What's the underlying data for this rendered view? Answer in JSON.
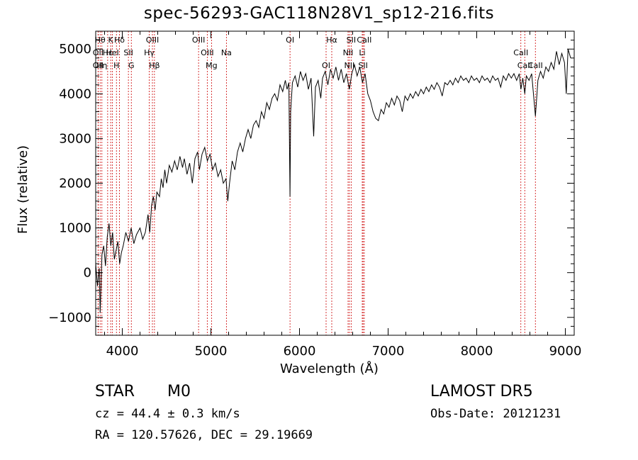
{
  "header": {
    "title": "spec-56293-GAC118N28V1_sp12-216.fits"
  },
  "info": {
    "object_type": "STAR",
    "subclass": "M0",
    "survey": "LAMOST DR5",
    "cz": "cz = 44.4 ± 0.3 km/s",
    "obs_date": "Obs-Date: 20121231",
    "radec": "RA = 120.57626, DEC =  29.19669"
  },
  "colors": {
    "line": "#000000",
    "marker": "#cc0000",
    "background": "#ffffff"
  },
  "chart_data": {
    "type": "line",
    "title": "spec-56293-GAC118N28V1_sp12-216.fits",
    "xlabel": "Wavelength (Å)",
    "ylabel": "Flux (relative)",
    "xlim": [
      3700,
      9100
    ],
    "ylim": [
      -1400,
      5400
    ],
    "xticks": [
      4000,
      5000,
      6000,
      7000,
      8000,
      9000
    ],
    "yticks": [
      -1000,
      0,
      1000,
      2000,
      3000,
      4000,
      5000
    ],
    "grid": false,
    "series": [
      {
        "values": [
          [
            3700,
            200
          ],
          [
            3720,
            -300
          ],
          [
            3740,
            100
          ],
          [
            3750,
            -900
          ],
          [
            3770,
            400
          ],
          [
            3790,
            600
          ],
          [
            3810,
            150
          ],
          [
            3830,
            800
          ],
          [
            3850,
            1100
          ],
          [
            3870,
            600
          ],
          [
            3890,
            900
          ],
          [
            3910,
            300
          ],
          [
            3930,
            500
          ],
          [
            3950,
            700
          ],
          [
            3970,
            200
          ],
          [
            3990,
            450
          ],
          [
            4010,
            600
          ],
          [
            4040,
            900
          ],
          [
            4070,
            700
          ],
          [
            4100,
            1000
          ],
          [
            4130,
            650
          ],
          [
            4160,
            850
          ],
          [
            4200,
            1000
          ],
          [
            4230,
            750
          ],
          [
            4260,
            900
          ],
          [
            4290,
            1300
          ],
          [
            4310,
            900
          ],
          [
            4330,
            1500
          ],
          [
            4350,
            1700
          ],
          [
            4370,
            1400
          ],
          [
            4390,
            1800
          ],
          [
            4420,
            1700
          ],
          [
            4440,
            2100
          ],
          [
            4460,
            1900
          ],
          [
            4480,
            2300
          ],
          [
            4500,
            2000
          ],
          [
            4530,
            2400
          ],
          [
            4560,
            2250
          ],
          [
            4590,
            2500
          ],
          [
            4620,
            2300
          ],
          [
            4650,
            2600
          ],
          [
            4680,
            2350
          ],
          [
            4700,
            2550
          ],
          [
            4730,
            2200
          ],
          [
            4760,
            2450
          ],
          [
            4790,
            2000
          ],
          [
            4820,
            2550
          ],
          [
            4850,
            2700
          ],
          [
            4870,
            2300
          ],
          [
            4900,
            2650
          ],
          [
            4930,
            2800
          ],
          [
            4960,
            2500
          ],
          [
            4990,
            2650
          ],
          [
            5020,
            2300
          ],
          [
            5050,
            2450
          ],
          [
            5080,
            2150
          ],
          [
            5110,
            2300
          ],
          [
            5140,
            2000
          ],
          [
            5170,
            2100
          ],
          [
            5190,
            1600
          ],
          [
            5210,
            2000
          ],
          [
            5240,
            2500
          ],
          [
            5270,
            2300
          ],
          [
            5300,
            2700
          ],
          [
            5330,
            2900
          ],
          [
            5360,
            2700
          ],
          [
            5390,
            3000
          ],
          [
            5420,
            3200
          ],
          [
            5450,
            3000
          ],
          [
            5480,
            3300
          ],
          [
            5510,
            3400
          ],
          [
            5540,
            3250
          ],
          [
            5570,
            3600
          ],
          [
            5600,
            3450
          ],
          [
            5630,
            3800
          ],
          [
            5660,
            3650
          ],
          [
            5690,
            3900
          ],
          [
            5720,
            4000
          ],
          [
            5750,
            3850
          ],
          [
            5780,
            4200
          ],
          [
            5810,
            4050
          ],
          [
            5840,
            4300
          ],
          [
            5860,
            4100
          ],
          [
            5880,
            4250
          ],
          [
            5893,
            1700
          ],
          [
            5900,
            3600
          ],
          [
            5920,
            4250
          ],
          [
            5950,
            4400
          ],
          [
            5980,
            4150
          ],
          [
            6010,
            4500
          ],
          [
            6040,
            4300
          ],
          [
            6070,
            4450
          ],
          [
            6100,
            4100
          ],
          [
            6130,
            4350
          ],
          [
            6160,
            3050
          ],
          [
            6180,
            4150
          ],
          [
            6210,
            4300
          ],
          [
            6240,
            3900
          ],
          [
            6260,
            4350
          ],
          [
            6290,
            4500
          ],
          [
            6320,
            4200
          ],
          [
            6350,
            4550
          ],
          [
            6380,
            4350
          ],
          [
            6410,
            4600
          ],
          [
            6440,
            4300
          ],
          [
            6470,
            4550
          ],
          [
            6500,
            4250
          ],
          [
            6530,
            4450
          ],
          [
            6562,
            4100
          ],
          [
            6590,
            4450
          ],
          [
            6620,
            4650
          ],
          [
            6650,
            4400
          ],
          [
            6680,
            4600
          ],
          [
            6710,
            4250
          ],
          [
            6740,
            4450
          ],
          [
            6770,
            4000
          ],
          [
            6800,
            3850
          ],
          [
            6830,
            3600
          ],
          [
            6860,
            3450
          ],
          [
            6890,
            3400
          ],
          [
            6920,
            3650
          ],
          [
            6950,
            3550
          ],
          [
            6980,
            3800
          ],
          [
            7010,
            3700
          ],
          [
            7040,
            3900
          ],
          [
            7070,
            3750
          ],
          [
            7100,
            3950
          ],
          [
            7130,
            3850
          ],
          [
            7160,
            3600
          ],
          [
            7190,
            3950
          ],
          [
            7220,
            3850
          ],
          [
            7250,
            4000
          ],
          [
            7280,
            3900
          ],
          [
            7310,
            4050
          ],
          [
            7340,
            3950
          ],
          [
            7370,
            4100
          ],
          [
            7400,
            4000
          ],
          [
            7430,
            4150
          ],
          [
            7460,
            4050
          ],
          [
            7490,
            4200
          ],
          [
            7520,
            4100
          ],
          [
            7550,
            4250
          ],
          [
            7580,
            4150
          ],
          [
            7610,
            3950
          ],
          [
            7640,
            4250
          ],
          [
            7670,
            4200
          ],
          [
            7700,
            4300
          ],
          [
            7730,
            4200
          ],
          [
            7760,
            4350
          ],
          [
            7790,
            4250
          ],
          [
            7820,
            4400
          ],
          [
            7850,
            4300
          ],
          [
            7880,
            4350
          ],
          [
            7910,
            4250
          ],
          [
            7940,
            4400
          ],
          [
            7970,
            4300
          ],
          [
            8000,
            4350
          ],
          [
            8030,
            4250
          ],
          [
            8060,
            4400
          ],
          [
            8090,
            4300
          ],
          [
            8120,
            4350
          ],
          [
            8150,
            4250
          ],
          [
            8180,
            4400
          ],
          [
            8210,
            4300
          ],
          [
            8240,
            4350
          ],
          [
            8270,
            4150
          ],
          [
            8300,
            4400
          ],
          [
            8330,
            4300
          ],
          [
            8360,
            4450
          ],
          [
            8390,
            4350
          ],
          [
            8420,
            4450
          ],
          [
            8450,
            4300
          ],
          [
            8480,
            4450
          ],
          [
            8498,
            4100
          ],
          [
            8520,
            4350
          ],
          [
            8542,
            4000
          ],
          [
            8560,
            4400
          ],
          [
            8590,
            4300
          ],
          [
            8620,
            4450
          ],
          [
            8662,
            3500
          ],
          [
            8690,
            4300
          ],
          [
            8720,
            4500
          ],
          [
            8750,
            4350
          ],
          [
            8780,
            4600
          ],
          [
            8810,
            4500
          ],
          [
            8840,
            4700
          ],
          [
            8870,
            4550
          ],
          [
            8900,
            4950
          ],
          [
            8930,
            4650
          ],
          [
            8960,
            4900
          ],
          [
            8990,
            4700
          ],
          [
            9010,
            4000
          ],
          [
            9030,
            5000
          ],
          [
            9060,
            4800
          ]
        ]
      }
    ],
    "markers": [
      {
        "wavelength": 3750,
        "label": "Hθ",
        "row": 0
      },
      {
        "wavelength": 3727,
        "label": "OII",
        "row": 1
      },
      {
        "wavelength": 3727,
        "label": "OII",
        "row": 2
      },
      {
        "wavelength": 3770,
        "label": "Hη",
        "row": 2
      },
      {
        "wavelength": 3835,
        "label": "Hε",
        "row": 1
      },
      {
        "wavelength": 3869,
        "label": "K",
        "row": 0
      },
      {
        "wavelength": 3889,
        "label": "HeI",
        "row": 1
      },
      {
        "wavelength": 3934,
        "label": "H",
        "row": 2
      },
      {
        "wavelength": 3968,
        "label": "Hδ",
        "row": 0
      },
      {
        "wavelength": 4069,
        "label": "SII",
        "row": 1
      },
      {
        "wavelength": 4102,
        "label": "G",
        "row": 2
      },
      {
        "wavelength": 4340,
        "label": "OIII",
        "row": 0
      },
      {
        "wavelength": 4304,
        "label": "Hγ",
        "row": 1
      },
      {
        "wavelength": 4363,
        "label": "Hβ",
        "row": 2
      },
      {
        "wavelength": 4861,
        "label": "OIII",
        "row": 0
      },
      {
        "wavelength": 4959,
        "label": "OIII",
        "row": 1
      },
      {
        "wavelength": 5007,
        "label": "Mg",
        "row": 2
      },
      {
        "wavelength": 5175,
        "label": "Na",
        "row": 1
      },
      {
        "wavelength": 5893,
        "label": "OI",
        "row": 0
      },
      {
        "wavelength": 6300,
        "label": "OI",
        "row": 2
      },
      {
        "wavelength": 6364,
        "label": "Hα",
        "row": 0
      },
      {
        "wavelength": 6548,
        "label": "NII",
        "row": 1
      },
      {
        "wavelength": 6563,
        "label": "NII",
        "row": 2
      },
      {
        "wavelength": 6583,
        "label": "SII",
        "row": 0
      },
      {
        "wavelength": 6708,
        "label": "Li",
        "row": 1
      },
      {
        "wavelength": 6717,
        "label": "SII",
        "row": 2
      },
      {
        "wavelength": 6731,
        "label": "CaII",
        "row": 0
      },
      {
        "wavelength": 8498,
        "label": "CaII",
        "row": 1
      },
      {
        "wavelength": 8542,
        "label": "CaII",
        "row": 2
      },
      {
        "wavelength": 8662,
        "label": "CaII",
        "row": 2
      }
    ]
  }
}
